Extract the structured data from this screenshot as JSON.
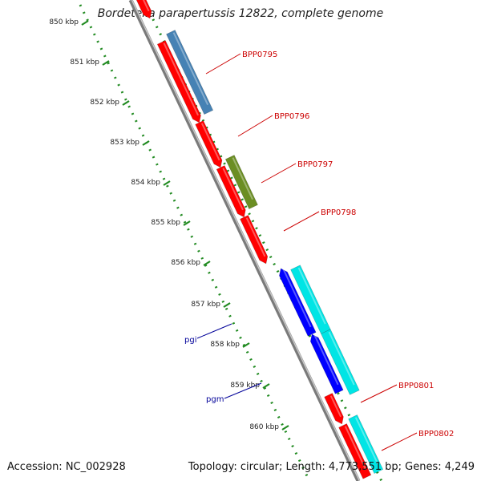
{
  "title": "Bordetella parapertussis 12822, complete genome",
  "footer": {
    "accession": "Accession: NC_002928",
    "summary": "Topology: circular; Length: 4,773,551 bp; Genes: 4,249"
  },
  "ruler_labels": [
    "850 kbp",
    "851 kbp",
    "852 kbp",
    "853 kbp",
    "854 kbp",
    "855 kbp",
    "856 kbp",
    "857 kbp",
    "858 kbp",
    "859 kbp",
    "860 kbp"
  ],
  "gene_labels": {
    "BPP0795": "BPP0795",
    "BPP0796": "BPP0796",
    "BPP0797": "BPP0797",
    "BPP0798": "BPP0798",
    "BPP0801": "BPP0801",
    "BPP0802": "BPP0802",
    "pgi": "pgi",
    "pgm": "pgm"
  },
  "colors": {
    "backbone": "#888888",
    "ruler": "#228B22",
    "cds_red": "#ff0000",
    "cds_steelblue": "#4682b4",
    "cds_olive": "#6b8e23",
    "cds_cyan": "#00e5e5",
    "cds_blue": "#0000ff",
    "label_red": "#cc0000",
    "label_blue": "#000099"
  }
}
